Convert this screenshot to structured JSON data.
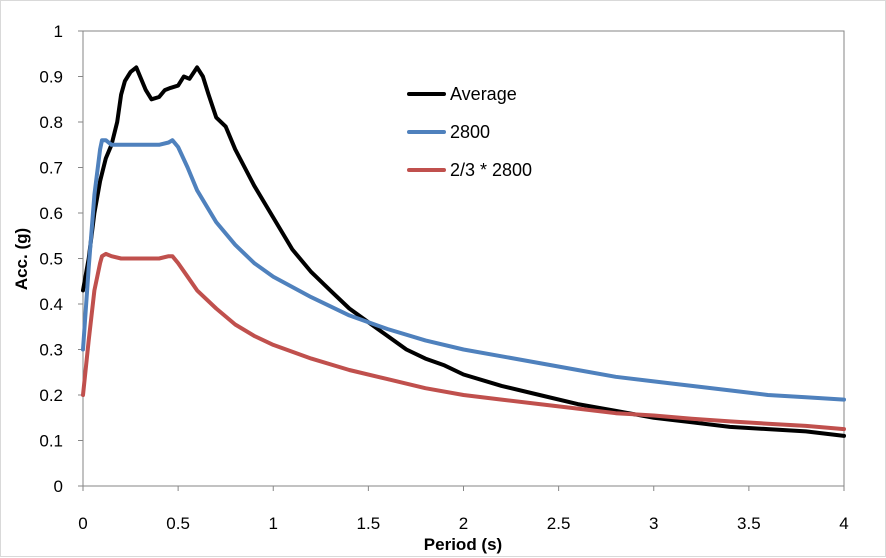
{
  "chart_data": {
    "type": "line",
    "title": "",
    "xlabel": "Period (s)",
    "ylabel": "Acc. (g)",
    "xlim": [
      0,
      4
    ],
    "ylim": [
      0,
      1
    ],
    "xticks": [
      "0",
      "0.5",
      "1",
      "1.5",
      "2",
      "2.5",
      "3",
      "3.5",
      "4"
    ],
    "yticks": [
      "0",
      "0.1",
      "0.2",
      "0.3",
      "0.4",
      "0.5",
      "0.6",
      "0.7",
      "0.8",
      "0.9",
      "1"
    ],
    "grid": false,
    "legend_position": "upper-right inside plot",
    "series": [
      {
        "name": "Average",
        "color": "#000000",
        "x": [
          0,
          0.03,
          0.06,
          0.09,
          0.12,
          0.15,
          0.18,
          0.2,
          0.22,
          0.25,
          0.28,
          0.3,
          0.33,
          0.36,
          0.4,
          0.43,
          0.46,
          0.5,
          0.53,
          0.56,
          0.6,
          0.63,
          0.66,
          0.7,
          0.75,
          0.8,
          0.85,
          0.9,
          1.0,
          1.1,
          1.2,
          1.3,
          1.4,
          1.5,
          1.6,
          1.7,
          1.8,
          1.9,
          2.0,
          2.2,
          2.4,
          2.6,
          2.8,
          3.0,
          3.2,
          3.4,
          3.6,
          3.8,
          4.0
        ],
        "values": [
          0.43,
          0.5,
          0.6,
          0.67,
          0.72,
          0.75,
          0.8,
          0.86,
          0.89,
          0.91,
          0.92,
          0.9,
          0.87,
          0.85,
          0.855,
          0.87,
          0.875,
          0.88,
          0.9,
          0.895,
          0.92,
          0.9,
          0.86,
          0.81,
          0.79,
          0.74,
          0.7,
          0.66,
          0.59,
          0.52,
          0.47,
          0.43,
          0.39,
          0.36,
          0.33,
          0.3,
          0.28,
          0.265,
          0.245,
          0.22,
          0.2,
          0.18,
          0.165,
          0.15,
          0.14,
          0.13,
          0.125,
          0.12,
          0.11
        ]
      },
      {
        "name": "2800",
        "color": "#4f81bd",
        "x": [
          0,
          0.03,
          0.06,
          0.09,
          0.1,
          0.12,
          0.15,
          0.2,
          0.3,
          0.4,
          0.45,
          0.47,
          0.5,
          0.55,
          0.6,
          0.7,
          0.8,
          0.9,
          1.0,
          1.2,
          1.4,
          1.6,
          1.8,
          2.0,
          2.2,
          2.4,
          2.6,
          2.8,
          3.0,
          3.2,
          3.4,
          3.6,
          3.8,
          4.0
        ],
        "values": [
          0.3,
          0.48,
          0.64,
          0.74,
          0.76,
          0.76,
          0.75,
          0.75,
          0.75,
          0.75,
          0.755,
          0.76,
          0.745,
          0.7,
          0.65,
          0.58,
          0.53,
          0.49,
          0.46,
          0.415,
          0.375,
          0.345,
          0.32,
          0.3,
          0.285,
          0.27,
          0.255,
          0.24,
          0.23,
          0.22,
          0.21,
          0.2,
          0.195,
          0.19
        ]
      },
      {
        "name": "2/3 * 2800",
        "color": "#c0504d",
        "x": [
          0,
          0.03,
          0.06,
          0.09,
          0.1,
          0.12,
          0.15,
          0.2,
          0.3,
          0.4,
          0.45,
          0.47,
          0.5,
          0.55,
          0.6,
          0.7,
          0.8,
          0.9,
          1.0,
          1.2,
          1.4,
          1.6,
          1.8,
          2.0,
          2.2,
          2.4,
          2.6,
          2.8,
          3.0,
          3.2,
          3.4,
          3.6,
          3.8,
          4.0
        ],
        "values": [
          0.2,
          0.32,
          0.43,
          0.49,
          0.505,
          0.51,
          0.505,
          0.5,
          0.5,
          0.5,
          0.505,
          0.505,
          0.49,
          0.46,
          0.43,
          0.39,
          0.355,
          0.33,
          0.31,
          0.28,
          0.255,
          0.235,
          0.215,
          0.2,
          0.19,
          0.18,
          0.17,
          0.16,
          0.155,
          0.148,
          0.142,
          0.137,
          0.132,
          0.125
        ]
      }
    ]
  }
}
